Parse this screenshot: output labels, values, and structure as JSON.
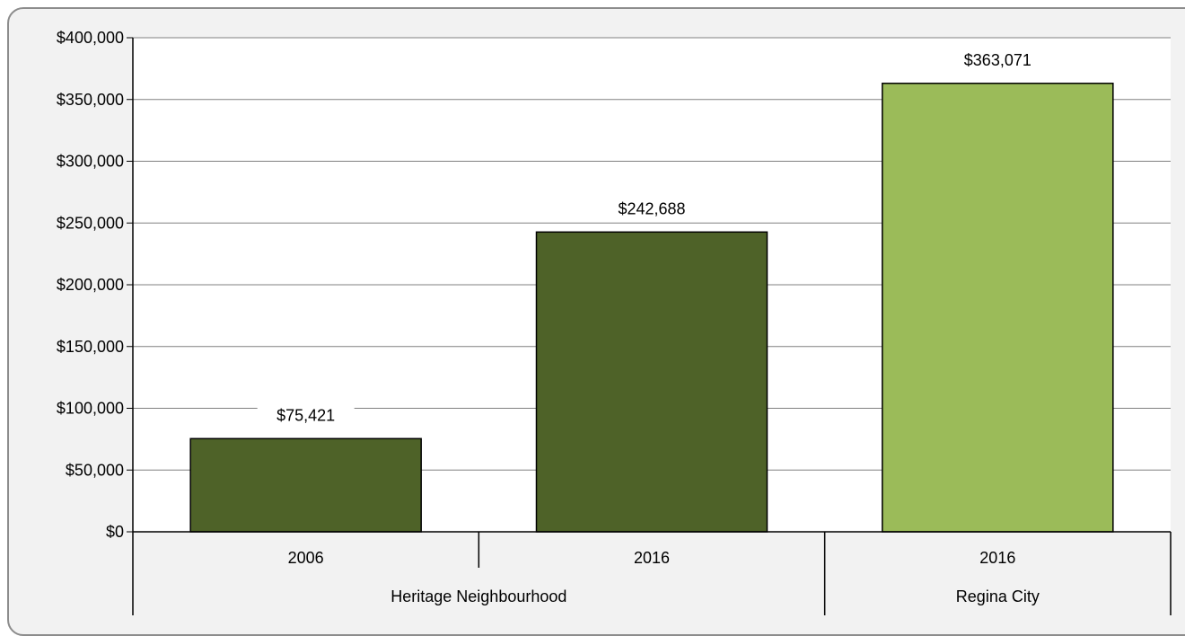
{
  "chart_data": {
    "type": "bar",
    "categories": [
      "2006",
      "2016",
      "2016"
    ],
    "groups": [
      {
        "label": "Heritage Neighbourhood",
        "categories": [
          "2006",
          "2016"
        ]
      },
      {
        "label": "Regina City",
        "categories": [
          "2016"
        ]
      }
    ],
    "values": [
      75421,
      242688,
      363071
    ],
    "value_labels": [
      "$75,421",
      "$242,688",
      "$363,071"
    ],
    "bar_colors": [
      "#4e6228",
      "#4e6228",
      "#9bbb59"
    ],
    "ylim": [
      0,
      400000
    ],
    "yticks": [
      0,
      50000,
      100000,
      150000,
      200000,
      250000,
      300000,
      350000,
      400000
    ],
    "ytick_labels": [
      "$0",
      "$50,000",
      "$100,000",
      "$150,000",
      "$200,000",
      "$250,000",
      "$300,000",
      "$350,000",
      "$400,000"
    ],
    "grid": true,
    "title": "",
    "xlabel": "",
    "ylabel": ""
  }
}
